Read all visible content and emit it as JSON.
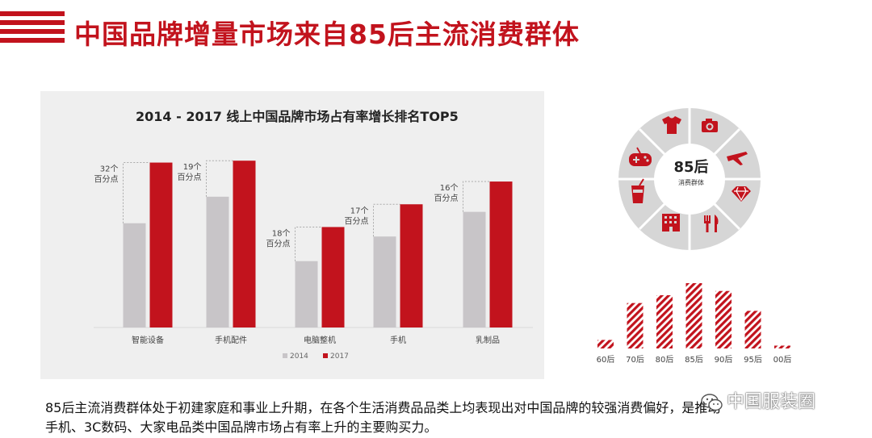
{
  "header": {
    "title": "中国品牌增量市场来自85后主流消费群体"
  },
  "colors": {
    "brand_red": "#c2131d",
    "gray": "#c8c5c8",
    "panel": "#efefef"
  },
  "chart_data": [
    {
      "type": "bar",
      "title": "2014 - 2017 线上中国品牌市场占有率增长排名TOP5",
      "categories": [
        "智能设备",
        "手机配件",
        "电脑整机",
        "手机",
        "乳制品"
      ],
      "series": [
        {
          "name": "2014",
          "values": [
            55,
            69,
            35,
            48,
            61
          ]
        },
        {
          "name": "2017",
          "values": [
            87,
            88,
            53,
            65,
            77
          ]
        }
      ],
      "annotations": [
        {
          "line1": "32个",
          "line2": "百分点"
        },
        {
          "line1": "19个",
          "line2": "百分点"
        },
        {
          "line1": "18个",
          "line2": "百分点"
        },
        {
          "line1": "17个",
          "line2": "百分点"
        },
        {
          "line1": "16个",
          "line2": "百分点"
        }
      ],
      "ylim": [
        0,
        100
      ],
      "legend": "bottom-center",
      "grid": false
    },
    {
      "type": "bar",
      "categories": [
        "60后",
        "70后",
        "80后",
        "85后",
        "90后",
        "95后",
        "00后"
      ],
      "values": [
        12,
        64,
        75,
        92,
        81,
        53,
        4
      ],
      "ylim": [
        0,
        100
      ],
      "grid": false
    }
  ],
  "wheel": {
    "center_big": "85后",
    "center_small": "消费群体",
    "icons": [
      "tshirt-icon",
      "camera-icon",
      "airplane-icon",
      "diamond-icon",
      "fork-knife-icon",
      "building-icon",
      "drink-icon",
      "gamepad-icon"
    ]
  },
  "footer": {
    "line1": "85后主流消费群体处于初建家庭和事业上升期，在各个生活消费品品类上均表现出对中国品牌的较强消费偏好，是推动",
    "line2": "手机、3C数码、大家电品类中国品牌市场占有率上升的主要购买力。"
  },
  "watermark": {
    "text": "中国服装圈"
  }
}
